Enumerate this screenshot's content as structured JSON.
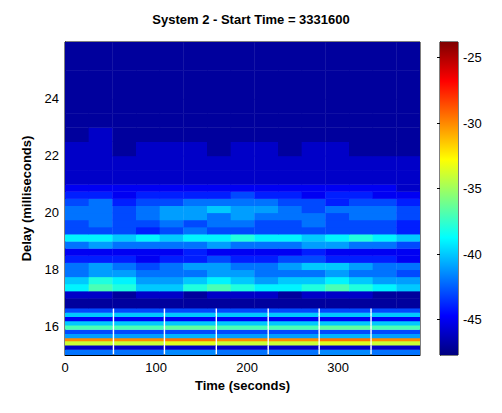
{
  "chart_data": {
    "type": "heatmap",
    "title": "System 2 - Start Time = 3331600",
    "x_label": "Time (seconds)",
    "y_label": "Delay (milliseconds)",
    "xlim": [
      0,
      390
    ],
    "xticks": [
      0,
      100,
      200,
      300
    ],
    "ylim": [
      15,
      26
    ],
    "yticks": [
      16,
      18,
      20,
      22,
      24
    ],
    "cells": [
      {
        "x_edges": [
          0,
          52,
          54,
          108,
          110,
          165,
          167,
          222,
          224,
          278,
          280,
          335,
          337,
          390
        ],
        "y_edges": [
          15.0,
          15.2,
          15.35,
          15.5,
          15.6,
          15.75,
          15.9,
          16.05,
          16.2,
          16.35,
          16.5,
          16.65
        ],
        "values": [
          [
            -42,
            null,
            -42,
            null,
            -41.5,
            null,
            -42,
            null,
            -42,
            null,
            -41.5,
            null,
            -42
          ],
          [
            -46,
            null,
            -46,
            null,
            -46,
            null,
            -46,
            null,
            -46,
            null,
            -46,
            null,
            -46
          ],
          [
            -34,
            null,
            -34,
            null,
            -33.5,
            null,
            -34,
            null,
            -34,
            null,
            -33.5,
            null,
            -34
          ],
          [
            -30,
            null,
            -30,
            null,
            -29.5,
            null,
            -30,
            null,
            -30,
            null,
            -29.5,
            null,
            -30
          ],
          [
            -41,
            null,
            -41,
            null,
            -40.5,
            null,
            -41,
            null,
            -41,
            null,
            -40.5,
            null,
            -41
          ],
          [
            -43,
            null,
            -43,
            null,
            -43,
            null,
            -43,
            null,
            -43,
            null,
            -43,
            null,
            -43
          ],
          [
            -37,
            null,
            -37,
            null,
            -36.5,
            null,
            -37,
            null,
            -37,
            null,
            -36.5,
            null,
            -37
          ],
          [
            -40,
            null,
            -40,
            null,
            -40,
            null,
            -40,
            null,
            -40,
            null,
            -40,
            null,
            -40
          ],
          [
            -45,
            null,
            -45,
            null,
            -45,
            null,
            -45,
            null,
            -45,
            null,
            -45,
            null,
            -45
          ],
          [
            -40,
            null,
            -40,
            null,
            -40,
            null,
            -40,
            null,
            -40,
            null,
            -40,
            null,
            -40
          ],
          [
            -43,
            null,
            -43,
            null,
            -43,
            null,
            -43,
            null,
            -43,
            null,
            -43,
            null,
            -43
          ]
        ]
      },
      {
        "x_edges": [
          0,
          26,
          52,
          78,
          104,
          130,
          156,
          182,
          208,
          234,
          260,
          286,
          312,
          338,
          364,
          390
        ],
        "y_edges": [
          16.65,
          17.0,
          17.25,
          17.5,
          17.75,
          18.0,
          18.25,
          18.5,
          18.75,
          19.0,
          19.25,
          19.5,
          19.75,
          20.0,
          20.25,
          20.5,
          20.75,
          21.0,
          21.5,
          22.0,
          22.5,
          23.0,
          23.5,
          24.0,
          25.0,
          26.0
        ],
        "values": [
          [
            -47,
            -47,
            -47,
            -47,
            -47,
            -47,
            -47,
            -47,
            -47,
            -47,
            -47,
            -47,
            -47,
            -47,
            -47
          ],
          [
            -46,
            -46,
            -47,
            -46,
            -46,
            -47,
            -46,
            -46,
            -46,
            -47,
            -46,
            -46,
            -46,
            -47,
            -47
          ],
          [
            -39,
            -37,
            -38,
            -40,
            -40,
            -38,
            -37,
            -38,
            -39,
            -39,
            -38,
            -37,
            -38,
            -39,
            -40
          ],
          [
            -40,
            -38,
            -39,
            -41,
            -41,
            -40,
            -39,
            -40,
            -41,
            -40,
            -40,
            -39,
            -40,
            -41,
            -41
          ],
          [
            -42,
            -41,
            -41,
            -42,
            -42,
            -42,
            -41,
            -41,
            -42,
            -42,
            -42,
            -41,
            -42,
            -42,
            -43
          ],
          [
            -42,
            -41,
            -42,
            -43,
            -42,
            -41,
            -41,
            -42,
            -42,
            -41,
            -40,
            -40,
            -41,
            -42,
            -42
          ],
          [
            -44,
            -44,
            -44,
            -45,
            -44,
            -44,
            -43,
            -44,
            -44,
            -43,
            -43,
            -44,
            -44,
            -44,
            -45
          ],
          [
            -45,
            -45,
            -45,
            -45,
            -45,
            -44,
            -45,
            -45,
            -45,
            -45,
            -44,
            -45,
            -45,
            -45,
            -45
          ],
          [
            -42,
            -41,
            -42,
            -42,
            -42,
            -42,
            -41,
            -42,
            -42,
            -42,
            -41,
            -41,
            -42,
            -42,
            -43
          ],
          [
            -39,
            -39,
            -40,
            -39,
            -40,
            -39,
            -39,
            -38,
            -39,
            -39,
            -40,
            -39,
            -38,
            -39,
            -40
          ],
          [
            -43,
            -43,
            -43,
            -44,
            -43,
            -42,
            -43,
            -43,
            -43,
            -43,
            -43,
            -43,
            -43,
            -43,
            -44
          ],
          [
            -43,
            -42,
            -43,
            -43,
            -42,
            -43,
            -42,
            -42,
            -43,
            -43,
            -42,
            -43,
            -43,
            -43,
            -44
          ],
          [
            -42,
            -42,
            -43,
            -42,
            -41,
            -41,
            -42,
            -41,
            -42,
            -42,
            -42,
            -43,
            -42,
            -42,
            -43
          ],
          [
            -42,
            -42,
            -43,
            -42,
            -41,
            -41,
            -40,
            -41,
            -41,
            -42,
            -43,
            -42,
            -42,
            -42,
            -43
          ],
          [
            -43,
            -42,
            -44,
            -43,
            -43,
            -42,
            -42,
            -42,
            -42,
            -43,
            -43,
            -44,
            -43,
            -43,
            -44
          ],
          [
            -44,
            -44,
            -45,
            -44,
            -44,
            -44,
            -44,
            -43,
            -44,
            -44,
            -45,
            -44,
            -44,
            -45,
            -45
          ],
          [
            -45,
            -45,
            -45,
            -45,
            -45,
            -45,
            -45,
            -45,
            -45,
            -45,
            -45,
            -45,
            -45,
            -45,
            -46
          ],
          [
            -46,
            -46,
            -46,
            -46,
            -46,
            -46,
            -46,
            -46,
            -46,
            -46,
            -46,
            -46,
            -46,
            -46,
            -46
          ],
          [
            -46,
            -46,
            -46,
            -46,
            -46,
            -46,
            -46,
            -46,
            -46,
            -46,
            -46,
            -46,
            -46,
            -46,
            -46
          ],
          [
            -46,
            -46,
            -47,
            -46,
            -46,
            -46,
            -47,
            -46,
            -46,
            -47,
            -46,
            -46,
            -47,
            -47,
            -47
          ],
          [
            -47,
            -46,
            -47,
            -47,
            -47,
            -47,
            -47,
            -47,
            -47,
            -47,
            -47,
            -47,
            -47,
            -47,
            -47
          ],
          [
            -47,
            -47,
            -47,
            -47,
            -47,
            -47,
            -47,
            -47,
            -47,
            -47,
            -47,
            -47,
            -47,
            -47,
            -47
          ],
          [
            -47,
            -47,
            -47,
            -47,
            -47,
            -47,
            -47,
            -47,
            -47,
            -47,
            -47,
            -47,
            -47,
            -47,
            -47
          ],
          [
            -47,
            -47,
            -47,
            -47,
            -47,
            -47,
            -47,
            -47,
            -47,
            -47,
            -47,
            -47,
            -47,
            -47,
            -47
          ],
          [
            -47,
            -47,
            -47,
            -47,
            -47,
            -47,
            -47,
            -47,
            -47,
            -47,
            -47,
            -47,
            -47,
            -47,
            -47
          ]
        ]
      }
    ],
    "colorbar": {
      "range": [
        -47.7,
        -23.8
      ],
      "ticks": [
        -45,
        -40,
        -35,
        -30,
        -25
      ]
    }
  }
}
